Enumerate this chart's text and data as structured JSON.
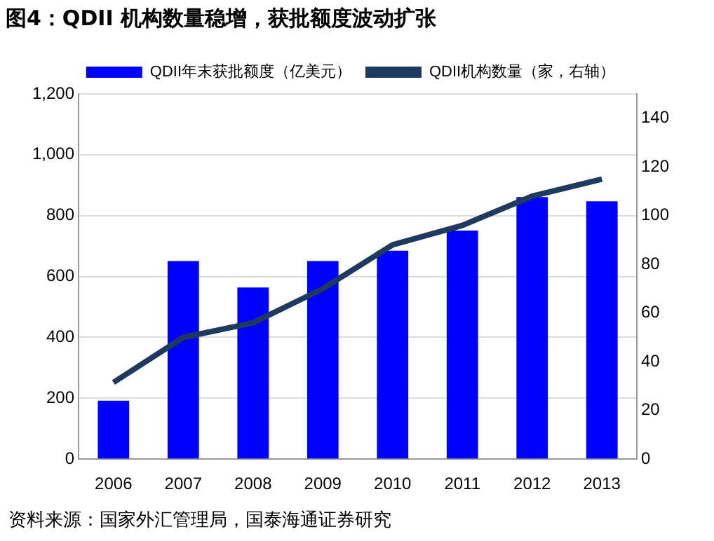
{
  "chart_data": {
    "type": "bar",
    "title": "图4：QDII 机构数量稳增，获批额度波动扩张",
    "categories": [
      "2006",
      "2007",
      "2008",
      "2009",
      "2010",
      "2011",
      "2012",
      "2013"
    ],
    "series": [
      {
        "name": "QDII年末获批额度（亿美元）",
        "color": "#0000ff",
        "values": [
          192,
          651,
          564,
          651,
          685,
          751,
          861,
          847
        ]
      },
      {
        "name": "QDII机构数量（家，右轴）",
        "type": "line",
        "axis": "y2",
        "color": "#1f3a5f",
        "values": [
          31.5,
          50,
          56,
          70,
          88,
          96,
          108,
          115
        ]
      }
    ],
    "ylim": [
      0,
      1200
    ],
    "yticks": [
      0,
      200,
      400,
      600,
      800,
      {
        "value": 1000,
        "label": "1,000"
      },
      {
        "value": 1200,
        "label": "1,200"
      }
    ],
    "y2lim": [
      0,
      150
    ],
    "y2ticks": [
      0,
      20,
      40,
      60,
      80,
      100,
      120,
      140
    ],
    "grid": "y",
    "legend": "top",
    "marker": "none",
    "annotations": [
      "资料来源：国家外汇管理局，国泰海通证券研究"
    ]
  }
}
